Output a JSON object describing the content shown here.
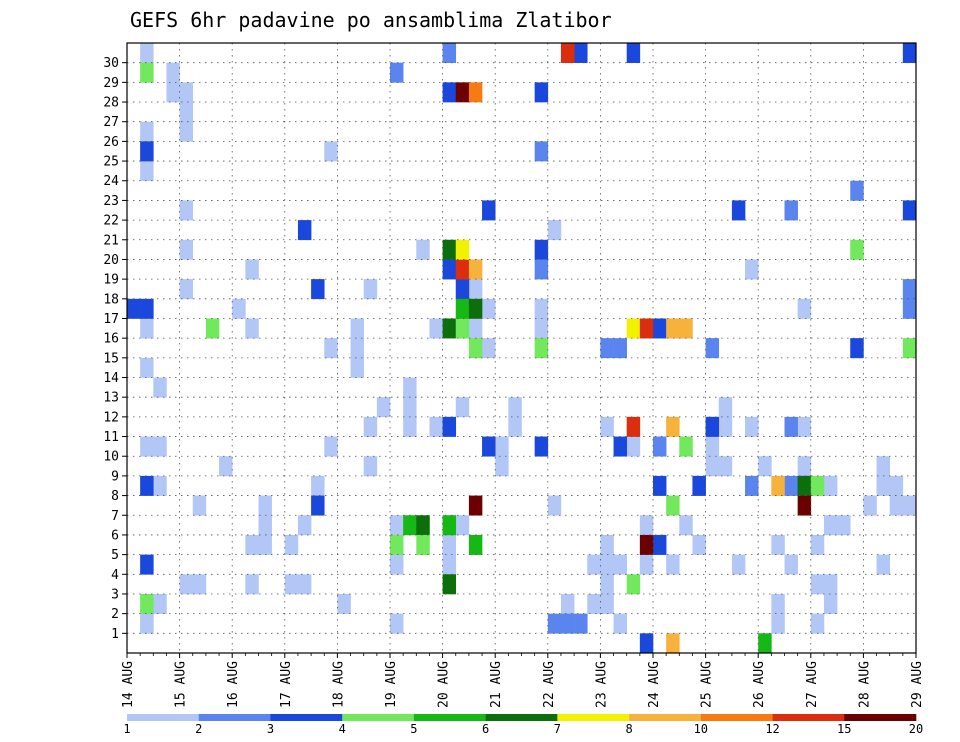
{
  "chart_data": {
    "type": "heatmap",
    "title": "GEFS 6hr padavine po ansamblima Zlatibor",
    "xlabel": "",
    "ylabel": "",
    "x_ticks": [
      "14 AUG",
      "15 AUG",
      "16 AUG",
      "17 AUG",
      "18 AUG",
      "19 AUG",
      "20 AUG",
      "21 AUG",
      "22 AUG",
      "23 AUG",
      "24 AUG",
      "25 AUG",
      "26 AUG",
      "27 AUG",
      "28 AUG",
      "29 AUG"
    ],
    "y_ticks": [
      "1",
      "2",
      "3",
      "4",
      "5",
      "6",
      "7",
      "8",
      "9",
      "10",
      "11",
      "12",
      "13",
      "14",
      "15",
      "16",
      "17",
      "18",
      "19",
      "20",
      "21",
      "22",
      "23",
      "24",
      "25",
      "26",
      "27",
      "28",
      "29",
      "30"
    ],
    "x_range_days": [
      0,
      15
    ],
    "steps_per_day": 4,
    "members": 31,
    "grid": true,
    "legend_position": "bottom",
    "legend": {
      "labels": [
        "1",
        "2",
        "3",
        "4",
        "5",
        "6",
        "7",
        "8",
        "10",
        "12",
        "15",
        "20"
      ],
      "colors": [
        "#b3c7f7",
        "#5a85ee",
        "#1a47dc",
        "#72e85c",
        "#16b816",
        "#0c6f0c",
        "#f2f200",
        "#f7b23c",
        "#f77a12",
        "#db2e0e",
        "#6b0000"
      ]
    },
    "cells": [
      [
        0,
        1,
        1
      ],
      [
        0,
        1,
        1
      ],
      [
        0,
        1,
        10
      ],
      [
        0,
        1,
        14
      ],
      [
        0,
        1,
        16
      ],
      [
        0,
        1,
        24
      ],
      [
        0,
        1,
        26
      ],
      [
        0,
        1,
        30
      ],
      [
        0,
        2,
        2
      ],
      [
        0,
        2,
        8
      ],
      [
        0,
        2,
        10
      ],
      [
        0,
        2,
        13
      ],
      [
        0,
        3,
        28
      ],
      [
        0,
        3,
        29
      ],
      [
        0,
        4,
        18
      ],
      [
        0,
        4,
        20
      ],
      [
        0,
        4,
        22
      ],
      [
        0,
        4,
        26
      ],
      [
        0,
        4,
        27
      ],
      [
        0,
        4,
        28
      ],
      [
        1,
        0,
        3
      ],
      [
        1,
        1,
        3
      ],
      [
        1,
        1,
        7
      ],
      [
        1,
        3,
        9
      ],
      [
        1,
        5,
        3
      ],
      [
        1,
        5,
        16
      ],
      [
        1,
        5,
        19
      ],
      [
        2,
        0,
        17
      ],
      [
        2,
        1,
        5
      ],
      [
        2,
        2,
        5
      ],
      [
        2,
        2,
        6
      ],
      [
        2,
        2,
        7
      ],
      [
        3,
        0,
        3
      ],
      [
        3,
        0,
        5
      ],
      [
        3,
        1,
        3
      ],
      [
        3,
        1,
        6
      ],
      [
        3,
        2,
        8
      ],
      [
        3,
        3,
        10
      ],
      [
        3,
        3,
        15
      ],
      [
        3,
        3,
        25
      ],
      [
        4,
        0,
        2
      ],
      [
        4,
        1,
        14
      ],
      [
        4,
        1,
        15
      ],
      [
        4,
        1,
        16
      ],
      [
        4,
        2,
        9
      ],
      [
        4,
        2,
        11
      ],
      [
        4,
        2,
        18
      ],
      [
        4,
        3,
        12
      ],
      [
        4,
        4,
        1
      ],
      [
        4,
        4,
        6
      ],
      [
        4,
        5,
        12
      ],
      [
        5,
        0,
        4
      ],
      [
        5,
        0,
        5
      ],
      [
        5,
        1,
        11
      ],
      [
        5,
        1,
        13
      ],
      [
        5,
        2,
        20
      ],
      [
        5,
        3,
        11
      ],
      [
        5,
        3,
        16
      ],
      [
        5,
        4,
        5
      ],
      [
        5,
        5,
        6
      ],
      [
        6,
        0,
        4
      ],
      [
        6,
        0,
        6
      ],
      [
        6,
        1,
        12
      ],
      [
        6,
        2,
        16
      ],
      [
        6,
        2,
        18
      ],
      [
        6,
        3,
        15
      ],
      [
        6,
        3,
        17
      ],
      [
        7,
        0,
        9
      ],
      [
        7,
        0,
        10
      ],
      [
        7,
        1,
        11
      ],
      [
        7,
        1,
        12
      ],
      [
        7,
        3,
        16
      ],
      [
        7,
        3,
        17
      ],
      [
        7,
        4,
        21
      ],
      [
        8,
        0,
        7
      ],
      [
        8,
        1,
        2
      ],
      [
        8,
        3,
        2
      ],
      [
        8,
        3,
        4
      ],
      [
        8,
        4,
        2
      ],
      [
        8,
        4,
        5
      ],
      [
        8,
        4,
        11
      ],
      [
        9,
        0,
        3
      ],
      [
        9,
        0,
        4
      ],
      [
        9,
        1,
        1
      ],
      [
        9,
        1,
        4
      ],
      [
        9,
        2,
        10
      ],
      [
        9,
        3,
        4
      ],
      [
        9,
        3,
        6
      ],
      [
        10,
        1,
        4
      ],
      [
        10,
        2,
        6
      ],
      [
        10,
        3,
        5
      ],
      [
        10,
        3,
        8
      ],
      [
        10,
        4,
        10
      ],
      [
        10,
        4,
        11
      ],
      [
        11,
        0,
        9
      ],
      [
        11,
        0,
        10
      ],
      [
        11,
        0,
        11
      ],
      [
        11,
        1,
        9
      ],
      [
        11,
        1,
        11
      ],
      [
        11,
        1,
        12
      ],
      [
        11,
        2,
        4
      ],
      [
        11,
        3,
        11
      ],
      [
        11,
        3,
        19
      ],
      [
        11,
        4,
        9
      ],
      [
        11,
        5,
        1
      ],
      [
        11,
        5,
        2
      ],
      [
        12,
        1,
        5
      ],
      [
        12,
        2,
        4
      ],
      [
        12,
        3,
        9
      ],
      [
        12,
        3,
        11
      ],
      [
        12,
        3,
        17
      ],
      [
        12,
        4,
        1
      ],
      [
        12,
        4,
        3
      ],
      [
        12,
        5,
        2
      ],
      [
        12,
        5,
        3
      ],
      [
        13,
        0,
        5
      ],
      [
        13,
        1,
        6
      ],
      [
        13,
        1,
        8
      ],
      [
        13,
        2,
        6
      ],
      [
        13,
        4,
        7
      ],
      [
        13,
        5,
        4
      ],
      [
        13,
        5,
        9
      ],
      [
        14,
        1,
        8
      ],
      [
        14,
        2,
        7
      ],
      [
        14,
        2,
        8
      ],
      [
        14,
        3,
        7
      ],
      [
        14,
        4,
        18
      ],
      [
        14,
        4,
        19
      ]
    ],
    "hot_cells": [
      [
        6,
        0,
        6,
        "#16b816"
      ],
      [
        6,
        0,
        16,
        "#0c6f0c"
      ],
      [
        6,
        1,
        16,
        "#72e85c"
      ],
      [
        6,
        1,
        19,
        "#db2e0e"
      ],
      [
        6,
        1,
        28,
        "#6b0000"
      ],
      [
        6,
        2,
        5,
        "#16b816"
      ],
      [
        6,
        2,
        7,
        "#6b0000"
      ],
      [
        6,
        2,
        15,
        "#72e85c"
      ],
      [
        6,
        2,
        19,
        "#f7b23c"
      ],
      [
        6,
        2,
        28,
        "#f77a12"
      ],
      [
        6,
        0,
        3,
        "#0c6f0c"
      ],
      [
        6,
        0,
        20,
        "#0c6f0c"
      ],
      [
        6,
        1,
        20,
        "#f2f200"
      ],
      [
        6,
        1,
        17,
        "#16b816"
      ],
      [
        6,
        2,
        17,
        "#0c6f0c"
      ],
      [
        5,
        0,
        5,
        "#72e85c"
      ],
      [
        5,
        1,
        6,
        "#16b816"
      ],
      [
        5,
        2,
        6,
        "#0c6f0c"
      ],
      [
        5,
        2,
        5,
        "#72e85c"
      ],
      [
        7,
        3,
        15,
        "#72e85c"
      ],
      [
        1,
        2,
        16,
        "#72e85c"
      ],
      [
        0,
        1,
        29,
        "#72e85c"
      ],
      [
        0,
        1,
        2,
        "#72e85c"
      ],
      [
        9,
        2,
        16,
        "#f2f200"
      ],
      [
        9,
        3,
        16,
        "#db2e0e"
      ],
      [
        9,
        2,
        11,
        "#db2e0e"
      ],
      [
        9,
        3,
        5,
        "#6b0000"
      ],
      [
        9,
        2,
        3,
        "#72e85c"
      ],
      [
        10,
        1,
        16,
        "#f7b23c"
      ],
      [
        10,
        2,
        16,
        "#f7b23c"
      ],
      [
        10,
        1,
        11,
        "#f7b23c"
      ],
      [
        10,
        2,
        10,
        "#72e85c"
      ],
      [
        10,
        1,
        7,
        "#72e85c"
      ],
      [
        10,
        1,
        0,
        "#f7b23c"
      ],
      [
        8,
        1,
        30,
        "#db2e0e"
      ],
      [
        12,
        1,
        8,
        "#f7b23c"
      ],
      [
        12,
        0,
        0,
        "#16b816"
      ],
      [
        12,
        3,
        8,
        "#0c6f0c"
      ],
      [
        13,
        0,
        8,
        "#72e85c"
      ],
      [
        12,
        3,
        7,
        "#6b0000"
      ],
      [
        13,
        3,
        20,
        "#72e85c"
      ],
      [
        14,
        3,
        15,
        "#72e85c"
      ]
    ],
    "blue_cells": [
      [
        6,
        0,
        28,
        "#1a47dc"
      ],
      [
        6,
        0,
        30,
        "#5a85ee"
      ],
      [
        6,
        0,
        19,
        "#1a47dc"
      ],
      [
        6,
        1,
        18,
        "#1a47dc"
      ],
      [
        6,
        3,
        22,
        "#1a47dc"
      ],
      [
        6,
        3,
        10,
        "#1a47dc"
      ],
      [
        6,
        0,
        11,
        "#1a47dc"
      ],
      [
        7,
        3,
        28,
        "#1a47dc"
      ],
      [
        7,
        3,
        20,
        "#1a47dc"
      ],
      [
        7,
        3,
        19,
        "#5a85ee"
      ],
      [
        7,
        3,
        25,
        "#5a85ee"
      ],
      [
        7,
        3,
        10,
        "#1a47dc"
      ],
      [
        0,
        1,
        25,
        "#1a47dc"
      ],
      [
        0,
        1,
        17,
        "#1a47dc"
      ],
      [
        0,
        0,
        17,
        "#1a47dc"
      ],
      [
        0,
        1,
        4,
        "#1a47dc"
      ],
      [
        0,
        1,
        8,
        "#1a47dc"
      ],
      [
        3,
        1,
        21,
        "#1a47dc"
      ],
      [
        3,
        2,
        18,
        "#1a47dc"
      ],
      [
        3,
        2,
        7,
        "#1a47dc"
      ],
      [
        5,
        0,
        29,
        "#5a85ee"
      ],
      [
        8,
        2,
        30,
        "#1a47dc"
      ],
      [
        8,
        0,
        1,
        "#5a85ee"
      ],
      [
        8,
        1,
        1,
        "#5a85ee"
      ],
      [
        8,
        2,
        1,
        "#5a85ee"
      ],
      [
        9,
        1,
        10,
        "#1a47dc"
      ],
      [
        9,
        2,
        30,
        "#1a47dc"
      ],
      [
        9,
        3,
        0,
        "#1a47dc"
      ],
      [
        9,
        0,
        15,
        "#5a85ee"
      ],
      [
        9,
        1,
        15,
        "#5a85ee"
      ],
      [
        10,
        0,
        16,
        "#1a47dc"
      ],
      [
        10,
        0,
        5,
        "#1a47dc"
      ],
      [
        10,
        0,
        10,
        "#5a85ee"
      ],
      [
        10,
        0,
        8,
        "#1a47dc"
      ],
      [
        10,
        3,
        8,
        "#1a47dc"
      ],
      [
        11,
        0,
        15,
        "#5a85ee"
      ],
      [
        11,
        0,
        11,
        "#1a47dc"
      ],
      [
        11,
        3,
        8,
        "#5a85ee"
      ],
      [
        11,
        2,
        22,
        "#1a47dc"
      ],
      [
        12,
        2,
        11,
        "#5a85ee"
      ],
      [
        12,
        2,
        22,
        "#5a85ee"
      ],
      [
        12,
        2,
        8,
        "#5a85ee"
      ],
      [
        12,
        3,
        8,
        "#1a47dc"
      ],
      [
        13,
        3,
        15,
        "#1a47dc"
      ],
      [
        13,
        3,
        23,
        "#5a85ee"
      ],
      [
        14,
        3,
        22,
        "#1a47dc"
      ],
      [
        14,
        3,
        30,
        "#1a47dc"
      ],
      [
        14,
        3,
        18,
        "#5a85ee"
      ],
      [
        14,
        3,
        17,
        "#5a85ee"
      ]
    ]
  }
}
